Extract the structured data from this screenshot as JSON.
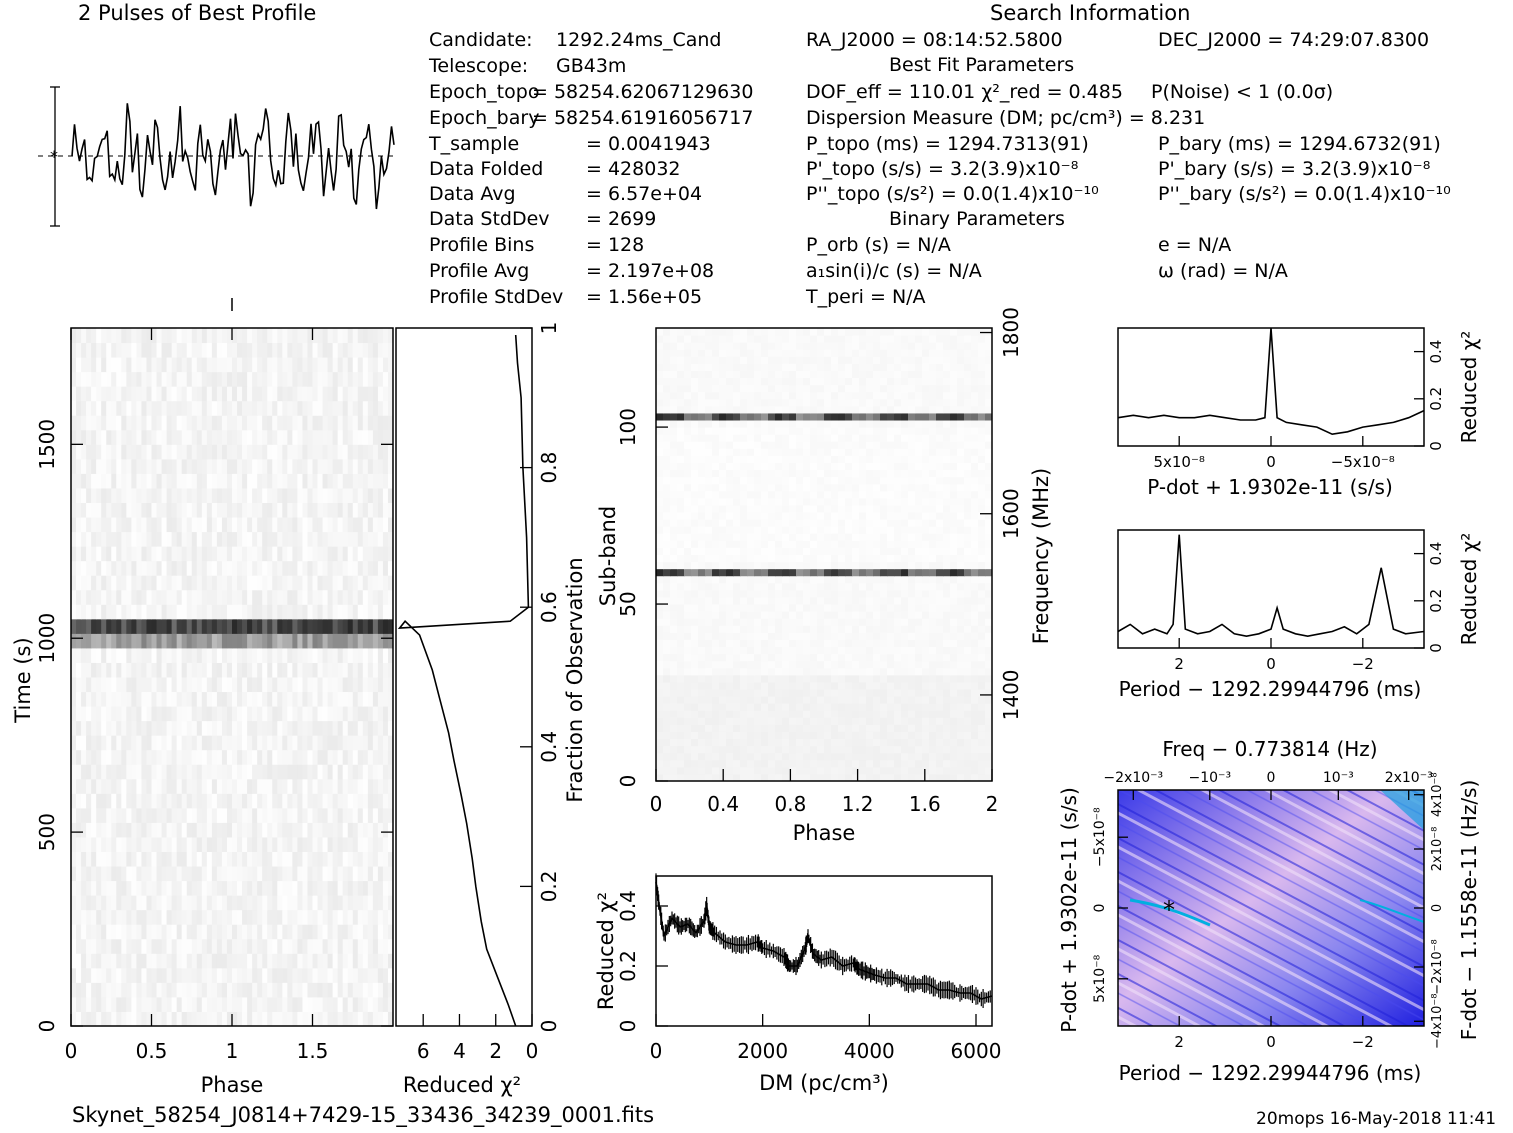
{
  "header": {
    "profile_title": "2 Pulses of Best Profile",
    "search_title": "Search Information",
    "best_fit_title": "Best Fit Parameters",
    "binary_title": "Binary Parameters"
  },
  "info_left": [
    {
      "label": "Candidate:",
      "value": "1292.24ms_Cand"
    },
    {
      "label": "Telescope:",
      "value": "GB43m"
    },
    {
      "label": "Epoch_topo",
      "value": "= 58254.62067129630"
    },
    {
      "label": "Epoch_bary",
      "value": "= 58254.61916056717"
    },
    {
      "label": "T_sample",
      "value": "=  0.0041943"
    },
    {
      "label": "Data Folded",
      "value": "=  428032"
    },
    {
      "label": "Data Avg",
      "value": "=  6.57e+04"
    },
    {
      "label": "Data StdDev",
      "value": "=  2699"
    },
    {
      "label": "Profile Bins",
      "value": "=  128"
    },
    {
      "label": "Profile Avg",
      "value": "=  2.197e+08"
    },
    {
      "label": "Profile StdDev",
      "value": "=  1.56e+05"
    }
  ],
  "info_mid": [
    "RA_J2000 = 08:14:52.5800",
    "DOF_eff = 110.01  χ²_red = 0.485",
    "Dispersion Measure (DM; pc/cm³) = 8.231",
    "P_topo (ms) =  1294.7313(91)",
    "P'_topo (s/s) =  3.2(3.9)x10⁻⁸",
    "P''_topo (s/s²) = 0.0(1.4)x10⁻¹⁰",
    "P_orb (s) = N/A",
    "a₁sin(i)/c (s) = N/A",
    "T_peri = N/A"
  ],
  "info_right": [
    "DEC_J2000 = 74:29:07.8300",
    "P(Noise) < 1  (0.0σ)",
    "P_bary (ms) =  1294.6732(91)",
    "P'_bary (s/s) =  3.2(3.9)x10⁻⁸",
    "P''_bary (s/s²) = 0.0(1.4)x10⁻¹⁰",
    "e = N/A",
    "ω (rad) = N/A"
  ],
  "footer": {
    "filename": "Skynet_58254_J0814+7429-15_33436_34239_0001.fits",
    "stamp": "20mops 16-May-2018 11:41"
  },
  "colors": {
    "ink": "#000000",
    "grey_dark": "#303030",
    "blue_dark": "#1a1ae6",
    "blue_light": "#e8c8f0"
  },
  "chart_data": [
    {
      "type": "line",
      "id": "profile",
      "title": "2 Pulses of Best Profile",
      "xlabel": "",
      "ylabel": "",
      "description": "two repeated noisy pulse profiles"
    },
    {
      "type": "heatmap",
      "id": "time-phase",
      "xlabel": "Phase",
      "ylabel": "Time (s)",
      "xlim": [
        0,
        2
      ],
      "ylim": [
        0,
        1800
      ],
      "xticks": [
        "0",
        "0.5",
        "1",
        "1.5"
      ],
      "yticks": [
        "0",
        "500",
        "1000",
        "1500"
      ],
      "bright_band_time": 1015
    },
    {
      "type": "line",
      "id": "fraction-chi2",
      "xlabel": "Reduced χ²",
      "ylabel": "Fraction of Observation",
      "xlim": [
        7.5,
        0
      ],
      "ylim": [
        0,
        1
      ],
      "xticks": [
        "6",
        "4",
        "2",
        "0"
      ],
      "yticks": [
        "0",
        "0.2",
        "0.4",
        "0.6",
        "0.8",
        "1"
      ],
      "x": [
        0.9,
        1.3,
        1.9,
        2.5,
        2.8,
        3.1,
        3.3,
        3.6,
        3.9,
        4.3,
        4.6,
        5.1,
        5.5,
        6.2,
        7.0,
        7.3,
        1.2,
        0.2,
        0.3,
        0.5,
        0.6,
        0.8,
        0.9
      ],
      "y": [
        0.0,
        0.03,
        0.07,
        0.11,
        0.15,
        0.2,
        0.24,
        0.29,
        0.33,
        0.38,
        0.42,
        0.47,
        0.51,
        0.56,
        0.58,
        0.57,
        0.58,
        0.6,
        0.7,
        0.8,
        0.9,
        0.95,
        0.99
      ]
    },
    {
      "type": "heatmap",
      "id": "subband-phase",
      "xlabel": "Phase",
      "ylabel": "Sub-band",
      "y2label": "Frequency (MHz)",
      "xlim": [
        0,
        2
      ],
      "ylim": [
        0,
        128
      ],
      "xticks": [
        "0",
        "0.4",
        "0.8",
        "1.2",
        "1.6",
        "2"
      ],
      "yticks": [
        "0",
        "50",
        "100"
      ],
      "y2ticks": [
        "1400",
        "1600",
        "1800"
      ],
      "bright_rows": [
        102,
        58
      ]
    },
    {
      "type": "line",
      "id": "dm-chi2",
      "xlabel": "DM (pc/cm³)",
      "ylabel": "Reduced χ²",
      "xlim": [
        0,
        6300
      ],
      "ylim": [
        0,
        0.5
      ],
      "xticks": [
        "0",
        "2000",
        "4000",
        "6000"
      ],
      "yticks": [
        "0",
        "0.2",
        "0.4"
      ],
      "x": [
        0,
        60,
        150,
        300,
        450,
        600,
        750,
        900,
        950,
        1000,
        1100,
        1300,
        1500,
        1700,
        1900,
        2000,
        2200,
        2400,
        2500,
        2650,
        2800,
        2850,
        2950,
        3100,
        3300,
        3500,
        3700,
        3800,
        3950,
        4100,
        4300,
        4500,
        4700,
        4900,
        5100,
        5300,
        5500,
        5700,
        5900,
        6100,
        6300
      ],
      "y": [
        0.48,
        0.4,
        0.3,
        0.36,
        0.33,
        0.34,
        0.31,
        0.35,
        0.4,
        0.33,
        0.31,
        0.28,
        0.27,
        0.27,
        0.28,
        0.26,
        0.25,
        0.23,
        0.2,
        0.2,
        0.26,
        0.3,
        0.24,
        0.22,
        0.23,
        0.2,
        0.21,
        0.19,
        0.18,
        0.17,
        0.16,
        0.16,
        0.14,
        0.14,
        0.14,
        0.12,
        0.12,
        0.11,
        0.11,
        0.09,
        0.1
      ]
    },
    {
      "type": "line",
      "id": "pdot-chi2",
      "xlabel": "P-dot + 1.9302e-11 (s/s)",
      "ylabel": "Reduced χ²",
      "xticks": [
        "5x10⁻⁸",
        "0",
        "−5x10⁻⁸"
      ],
      "yticks": [
        "0",
        "0.2",
        "0.4"
      ],
      "ylim": [
        0,
        0.5
      ],
      "x": [
        0,
        0.05,
        0.1,
        0.15,
        0.2,
        0.25,
        0.3,
        0.35,
        0.4,
        0.45,
        0.48,
        0.5,
        0.52,
        0.55,
        0.6,
        0.65,
        0.7,
        0.75,
        0.8,
        0.85,
        0.9,
        0.95,
        1.0
      ],
      "y": [
        0.12,
        0.13,
        0.12,
        0.13,
        0.12,
        0.12,
        0.13,
        0.12,
        0.11,
        0.11,
        0.12,
        0.5,
        0.12,
        0.1,
        0.09,
        0.08,
        0.05,
        0.06,
        0.08,
        0.09,
        0.1,
        0.12,
        0.15
      ]
    },
    {
      "type": "line",
      "id": "period-chi2",
      "xlabel": "Period − 1292.29944796 (ms)",
      "ylabel": "Reduced χ²",
      "xticks": [
        "2",
        "0",
        "−2"
      ],
      "yticks": [
        "0",
        "0.2",
        "0.4"
      ],
      "ylim": [
        0,
        0.5
      ],
      "x": [
        0,
        0.04,
        0.08,
        0.12,
        0.16,
        0.18,
        0.2,
        0.22,
        0.26,
        0.3,
        0.34,
        0.38,
        0.42,
        0.46,
        0.5,
        0.52,
        0.54,
        0.58,
        0.62,
        0.66,
        0.7,
        0.74,
        0.78,
        0.8,
        0.82,
        0.86,
        0.9,
        0.94,
        1.0
      ],
      "y": [
        0.07,
        0.1,
        0.06,
        0.08,
        0.06,
        0.1,
        0.48,
        0.08,
        0.06,
        0.07,
        0.1,
        0.06,
        0.05,
        0.06,
        0.08,
        0.17,
        0.08,
        0.06,
        0.05,
        0.06,
        0.07,
        0.09,
        0.06,
        0.08,
        0.1,
        0.34,
        0.08,
        0.06,
        0.07
      ]
    },
    {
      "type": "heatmap",
      "id": "p-pdot",
      "title": "Freq − 0.773814 (Hz)",
      "xlabel": "Period − 1292.29944796 (ms)",
      "ylabel": "P-dot + 1.9302e-11 (s/s)",
      "y2label": "F-dot − 1.1558e-11 (Hz/s)",
      "xticks": [
        "2",
        "0",
        "−2"
      ],
      "x2ticks": [
        "−2x10⁻³",
        "−10⁻³",
        "0",
        "10⁻³",
        "2x10⁻³"
      ],
      "yticks": [
        "5x10⁻⁸",
        "0",
        "−5x10⁻⁸"
      ],
      "y2ticks": [
        "−4x10⁻⁸",
        "−2x10⁻⁸",
        "0",
        "2x10⁻⁸",
        "4x10⁻⁸"
      ],
      "best_marker": "*"
    }
  ]
}
